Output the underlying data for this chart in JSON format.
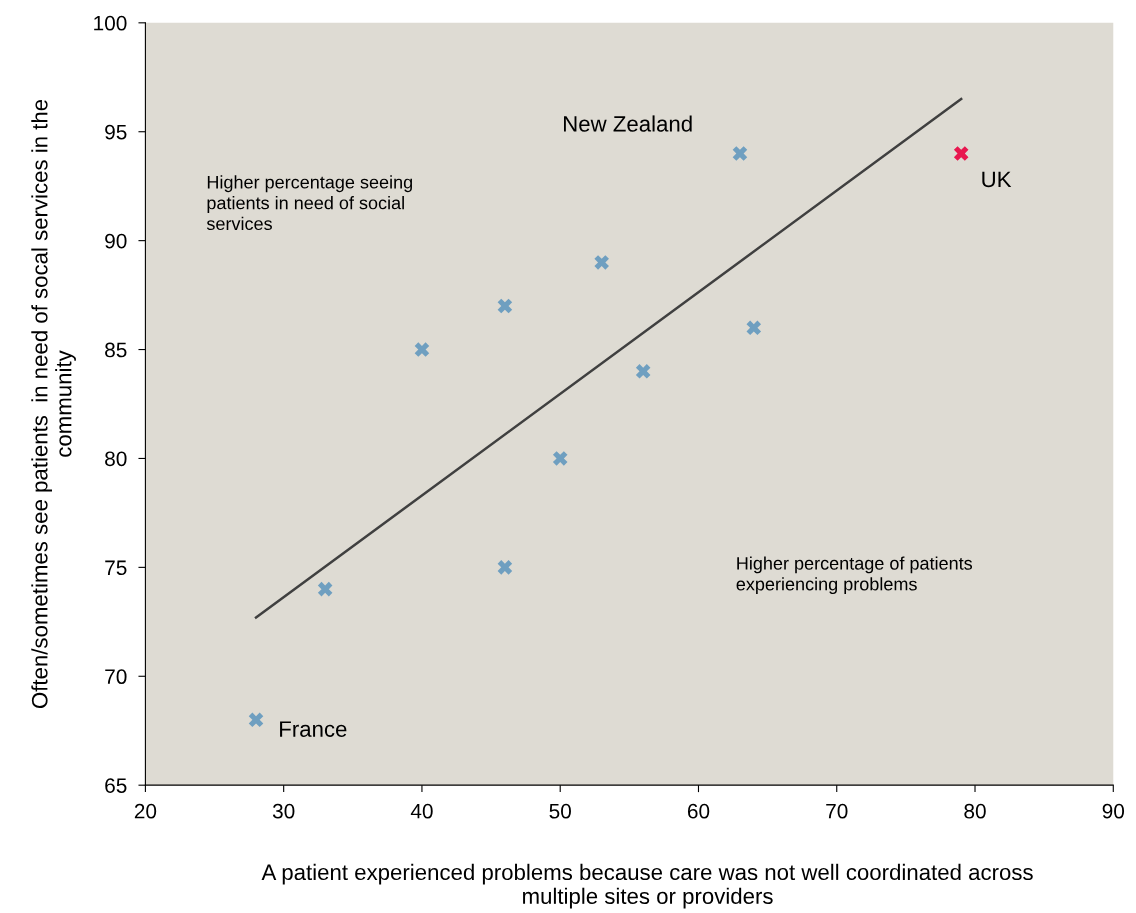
{
  "chart_data": {
    "type": "scatter",
    "xlabel": "A patient experienced problems because care was not well coordinated across multiple sites or providers",
    "ylabel": "Often/sometimes see patients  in need of socal services in the community",
    "xlim": [
      20,
      90
    ],
    "xticks": [
      20,
      30,
      40,
      50,
      60,
      70,
      80,
      90
    ],
    "ylim": [
      65,
      100
    ],
    "yticks": [
      65,
      70,
      75,
      80,
      85,
      90,
      95,
      100
    ],
    "grid": false,
    "legend": false,
    "marker": "cross",
    "series": [
      {
        "color": "#6f9fc0",
        "x": [
          28,
          33,
          40,
          46,
          46,
          50,
          53,
          56,
          63,
          64
        ],
        "values": [
          68,
          74,
          85,
          87,
          75,
          80,
          89,
          84,
          94,
          86
        ]
      },
      {
        "color": "#e8174f",
        "x": [
          79
        ],
        "values": [
          94
        ]
      },
      {
        "type": "line",
        "color": "#404040",
        "marker": "none",
        "x": [
          28,
          79
        ],
        "values": [
          72.7,
          96.5
        ]
      }
    ],
    "annotations": [
      {
        "text": "New Zealand",
        "x": 63,
        "y": 94
      },
      {
        "text": "UK",
        "x": 79,
        "y": 94
      },
      {
        "text": "France",
        "x": 28,
        "y": 68
      },
      "Higher percentage seeing patients in need of social services",
      "Higher percentage of patients experiencing problems"
    ]
  }
}
